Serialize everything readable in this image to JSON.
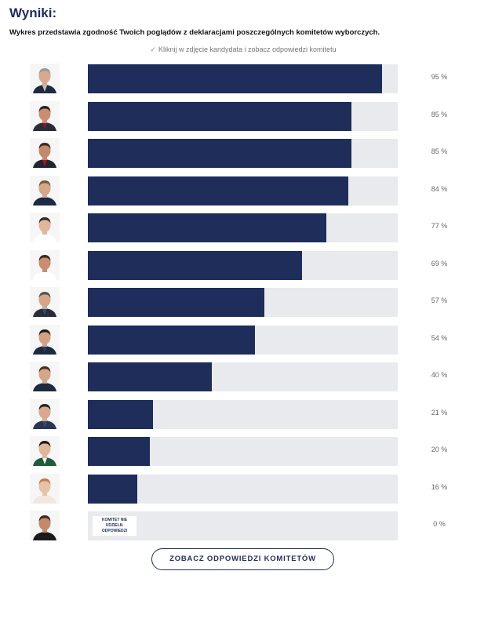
{
  "header": {
    "title": "Wyniki:",
    "subtitle": "Wykres przedstawia zgodność Twoich poglądów z deklaracjami poszczególnych komitetów wyborczych.",
    "hint_check": "✓",
    "hint": "Kliknij w zdjęcie kandydata i zobacz odpowiedzi komitetu"
  },
  "colors": {
    "bar": "#1f2d5a",
    "track": "#e8eaed"
  },
  "chart_data": {
    "type": "bar",
    "orientation": "horizontal",
    "ylim": [
      0,
      100
    ],
    "values": [
      95,
      85,
      85,
      84,
      77,
      69,
      57,
      54,
      40,
      21,
      20,
      16,
      0
    ],
    "labels": [
      "95 %",
      "85 %",
      "85 %",
      "84 %",
      "77 %",
      "69 %",
      "57 %",
      "54 %",
      "40 %",
      "21 %",
      "20 %",
      "16 %",
      "0 %"
    ],
    "annotations": [
      "KOMITET NIE UDZIELIŁ ODPOWIEDZI"
    ]
  },
  "rows": [
    {
      "avatar_icon": "candidate-photo",
      "skin": "#d8a98e",
      "hair": "#9a9a9a",
      "shirt": "#1e2a3e",
      "tie": "#c0c0c0"
    },
    {
      "avatar_icon": "candidate-photo",
      "skin": "#c98d72",
      "hair": "#2a2220",
      "shirt": "#2a2d36",
      "tie": "#7a1f2a"
    },
    {
      "avatar_icon": "candidate-photo",
      "skin": "#c4896c",
      "hair": "#3a2a20",
      "shirt": "#22252e",
      "tie": "#9a1f1f"
    },
    {
      "avatar_icon": "candidate-photo",
      "skin": "#d6a68a",
      "hair": "#7a5a3a",
      "shirt": "#1d2a45",
      "tie": "#1d2a45"
    },
    {
      "avatar_icon": "candidate-photo",
      "skin": "#e0b79c",
      "hair": "#2b2b2b",
      "shirt": "#ffffff",
      "tie": "#ffffff"
    },
    {
      "avatar_icon": "candidate-photo",
      "skin": "#c98d72",
      "hair": "#3a2a20",
      "shirt": "#ffffff",
      "tie": "#ffffff"
    },
    {
      "avatar_icon": "candidate-photo",
      "skin": "#d6a68a",
      "hair": "#555555",
      "shirt": "#2a2d36",
      "tie": "#2a4a8a"
    },
    {
      "avatar_icon": "candidate-photo",
      "skin": "#d1a085",
      "hair": "#1f1a18",
      "shirt": "#1e2a3e",
      "tie": "#2a3a6a"
    },
    {
      "avatar_icon": "candidate-photo",
      "skin": "#d6a68a",
      "hair": "#4a3020",
      "shirt": "#1e2a3e",
      "tie": "#1e2a3e"
    },
    {
      "avatar_icon": "candidate-photo",
      "skin": "#d8a98e",
      "hair": "#2a2220",
      "shirt": "#2a3550",
      "tie": "#3a4a70"
    },
    {
      "avatar_icon": "candidate-photo",
      "skin": "#e0b79c",
      "hair": "#2a1a14",
      "shirt": "#1f5a3a",
      "tie": "#f2f2f2"
    },
    {
      "avatar_icon": "candidate-photo",
      "skin": "#e6c2a6",
      "hair": "#c07a50",
      "shirt": "#f0e8e0",
      "tie": "#f0e8e0"
    },
    {
      "avatar_icon": "candidate-photo",
      "skin": "#c4896c",
      "hair": "#3a2a20",
      "shirt": "#1a1a1a",
      "tie": "#1a1a1a"
    }
  ],
  "button": {
    "label": "ZOBACZ ODPOWIEDZI KOMITETÓW"
  }
}
